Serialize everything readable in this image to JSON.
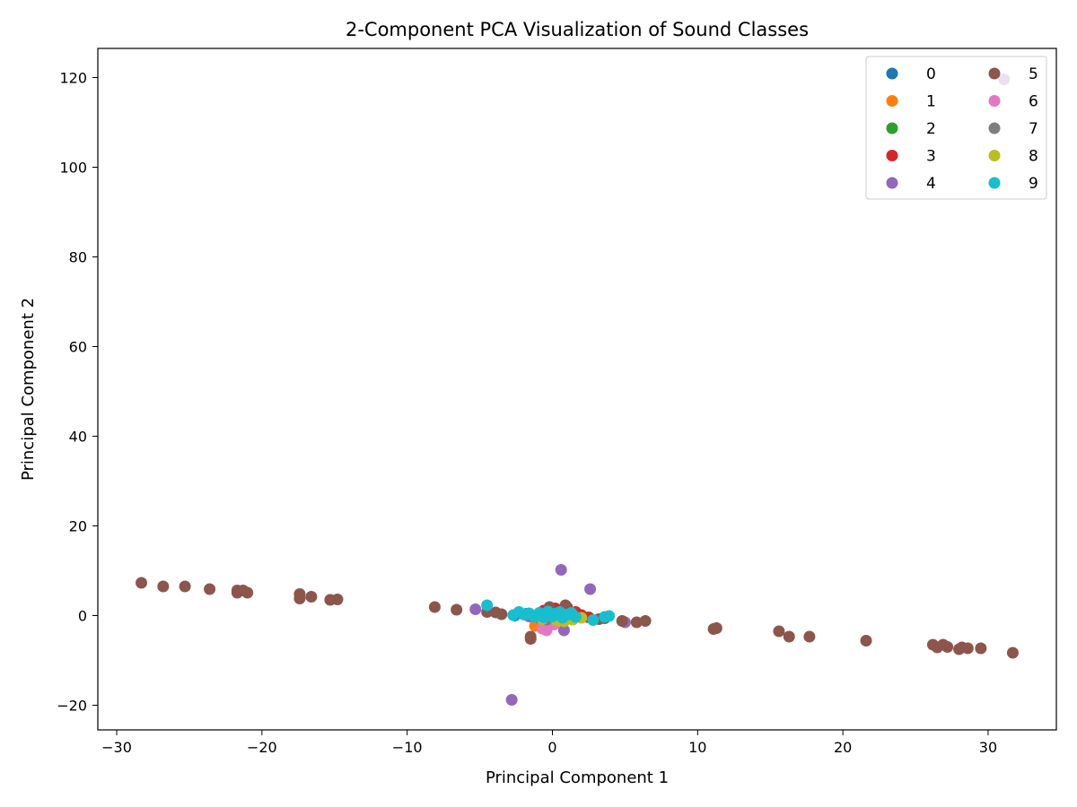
{
  "chart_data": {
    "type": "scatter",
    "title": "2-Component PCA Visualization of Sound Classes",
    "xlabel": "Principal Component 1",
    "ylabel": "Principal Component 2",
    "xlim": [
      -31.3,
      34.7
    ],
    "ylim": [
      -25.5,
      126.5
    ],
    "xticks": [
      -30,
      -20,
      -10,
      0,
      10,
      20,
      30
    ],
    "yticks": [
      -20,
      0,
      20,
      40,
      60,
      80,
      100,
      120
    ],
    "tick_labels": {
      "x": [
        "−30",
        "−20",
        "−10",
        "0",
        "10",
        "20",
        "30"
      ],
      "y": [
        "−20",
        "0",
        "20",
        "40",
        "60",
        "80",
        "100",
        "120"
      ]
    },
    "grid": false,
    "legend": {
      "placement": "top-right",
      "columns": 2
    },
    "series": [
      {
        "name": "0",
        "color": "#1f77b4",
        "points": [
          [
            -2.6,
            0.0
          ],
          [
            -1.8,
            0.4
          ],
          [
            -1.0,
            0.2
          ],
          [
            0.3,
            -0.2
          ],
          [
            0.9,
            0.5
          ],
          [
            -0.5,
            0.8
          ]
        ]
      },
      {
        "name": "1",
        "color": "#ff7f0e",
        "points": [
          [
            -1.2,
            -2.3
          ],
          [
            -0.8,
            -1.5
          ],
          [
            -0.2,
            -0.7
          ],
          [
            0.6,
            -0.3
          ],
          [
            1.3,
            0.3
          ]
        ]
      },
      {
        "name": "2",
        "color": "#2ca02c",
        "points": [
          [
            -0.9,
            -0.5
          ],
          [
            -0.3,
            0.4
          ],
          [
            0.4,
            -0.8
          ],
          [
            1.2,
            -0.2
          ],
          [
            0.1,
            0.7
          ]
        ]
      },
      {
        "name": "3",
        "color": "#d62728",
        "points": [
          [
            -0.6,
            1.1
          ],
          [
            0.2,
            1.6
          ],
          [
            1.0,
            1.9
          ],
          [
            2.0,
            0.1
          ],
          [
            2.5,
            -0.4
          ],
          [
            1.6,
            0.8
          ]
        ]
      },
      {
        "name": "4",
        "color": "#9467bd",
        "points": [
          [
            0.6,
            10.2
          ],
          [
            2.6,
            5.9
          ],
          [
            -5.3,
            1.4
          ],
          [
            -2.8,
            -18.8
          ],
          [
            0.8,
            -3.3
          ],
          [
            5.0,
            -1.5
          ],
          [
            -1.6,
            -0.2
          ]
        ]
      },
      {
        "name": "5",
        "color": "#8c564b",
        "points": [
          [
            -28.3,
            7.3
          ],
          [
            -26.8,
            6.5
          ],
          [
            -25.3,
            6.5
          ],
          [
            -23.6,
            5.9
          ],
          [
            -21.7,
            5.6
          ],
          [
            -21.7,
            5.1
          ],
          [
            -21.3,
            5.6
          ],
          [
            -21.0,
            5.1
          ],
          [
            -17.4,
            4.8
          ],
          [
            -17.4,
            3.8
          ],
          [
            -16.6,
            4.2
          ],
          [
            -15.3,
            3.5
          ],
          [
            -14.8,
            3.6
          ],
          [
            -8.1,
            1.9
          ],
          [
            -6.6,
            1.3
          ],
          [
            -4.5,
            0.8
          ],
          [
            -3.9,
            0.7
          ],
          [
            -3.5,
            0.3
          ],
          [
            -1.5,
            -4.7
          ],
          [
            -1.5,
            -5.2
          ],
          [
            -0.2,
            1.9
          ],
          [
            0.9,
            2.3
          ],
          [
            3.2,
            -0.8
          ],
          [
            3.6,
            -0.6
          ],
          [
            4.8,
            -1.2
          ],
          [
            5.8,
            -1.5
          ],
          [
            6.4,
            -1.2
          ],
          [
            11.1,
            -3.0
          ],
          [
            11.3,
            -2.8
          ],
          [
            15.6,
            -3.5
          ],
          [
            16.3,
            -4.7
          ],
          [
            17.7,
            -4.7
          ],
          [
            21.6,
            -5.6
          ],
          [
            26.2,
            -6.5
          ],
          [
            26.5,
            -7.1
          ],
          [
            26.9,
            -6.5
          ],
          [
            27.2,
            -7.0
          ],
          [
            28.0,
            -7.5
          ],
          [
            28.2,
            -7.1
          ],
          [
            28.6,
            -7.3
          ],
          [
            29.5,
            -7.3
          ],
          [
            31.7,
            -8.3
          ]
        ]
      },
      {
        "name": "6",
        "color": "#e377c2",
        "points": [
          [
            -0.7,
            -2.9
          ],
          [
            -0.4,
            -3.3
          ],
          [
            0.1,
            -2.0
          ],
          [
            -0.2,
            -1.2
          ]
        ]
      },
      {
        "name": "7",
        "color": "#7f7f7f",
        "points": [
          [
            -0.4,
            -0.9
          ],
          [
            0.6,
            0.1
          ],
          [
            1.1,
            -0.6
          ]
        ]
      },
      {
        "name": "8",
        "color": "#bcbd22",
        "points": [
          [
            -0.7,
            -0.8
          ],
          [
            0.3,
            -1.1
          ],
          [
            1.4,
            -0.9
          ],
          [
            2.0,
            -0.5
          ],
          [
            0.8,
            -1.3
          ]
        ]
      },
      {
        "name": "9",
        "color": "#17becf",
        "points": [
          [
            -4.5,
            2.3
          ],
          [
            -2.7,
            0.1
          ],
          [
            -2.3,
            0.8
          ],
          [
            -2.0,
            0.3
          ],
          [
            -1.6,
            0.5
          ],
          [
            -1.2,
            -0.3
          ],
          [
            -0.9,
            0.6
          ],
          [
            -0.6,
            -0.4
          ],
          [
            -0.3,
            0.9
          ],
          [
            0.0,
            -0.2
          ],
          [
            0.2,
            0.4
          ],
          [
            0.5,
            0.8
          ],
          [
            0.7,
            -0.5
          ],
          [
            1.0,
            0.2
          ],
          [
            1.3,
            0.6
          ],
          [
            1.6,
            -0.3
          ],
          [
            2.8,
            -1.0
          ],
          [
            3.6,
            -0.3
          ],
          [
            3.9,
            -0.1
          ],
          [
            -1.9,
            0.2
          ]
        ]
      }
    ],
    "outliers": [
      {
        "series": "4",
        "x": 31.1,
        "y": 119.6
      }
    ]
  }
}
